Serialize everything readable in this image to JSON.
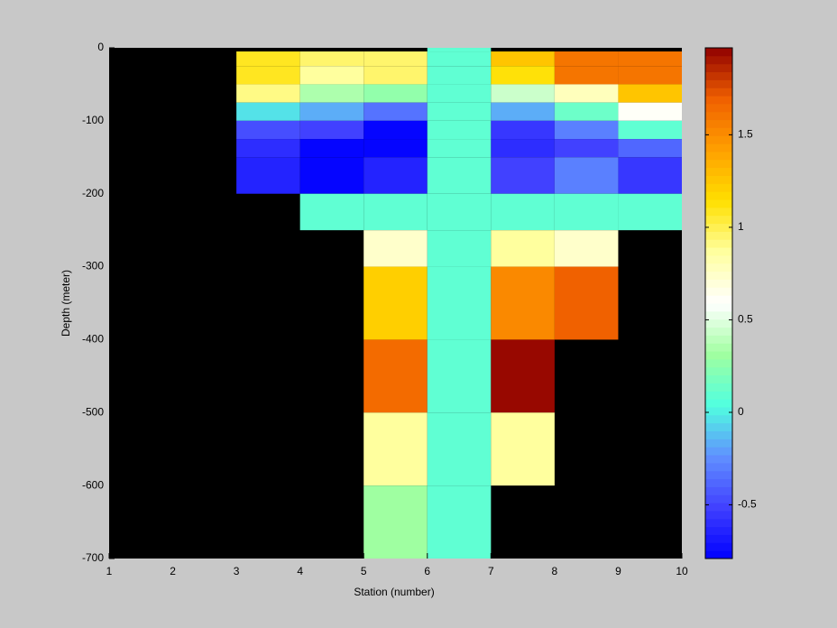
{
  "chart_data": {
    "type": "heatmap",
    "xlabel": "Station (number)",
    "ylabel": "Depth (meter)",
    "x_edges": [
      3,
      4,
      5,
      6,
      7,
      8,
      9,
      10
    ],
    "y_edges": [
      0,
      -5,
      -25,
      -50,
      -75,
      -100,
      -125,
      -150,
      -200,
      -250,
      -300,
      -400,
      -500,
      -600,
      -700
    ],
    "values": [
      [
        null,
        null,
        null,
        0.1,
        null,
        null,
        null
      ],
      [
        1.1,
        0.95,
        0.95,
        0.1,
        1.25,
        1.6,
        1.6
      ],
      [
        1.1,
        0.85,
        0.95,
        0.1,
        1.15,
        1.6,
        1.6
      ],
      [
        0.9,
        0.35,
        0.25,
        0.1,
        0.45,
        0.8,
        1.25
      ],
      [
        -0.05,
        -0.15,
        -0.35,
        0.1,
        -0.15,
        0.15,
        0.6
      ],
      [
        -0.45,
        -0.5,
        -0.75,
        0.1,
        -0.55,
        -0.3,
        0.1
      ],
      [
        -0.6,
        -0.79,
        -0.75,
        0.1,
        -0.6,
        -0.5,
        -0.4
      ],
      [
        -0.65,
        -0.79,
        -0.65,
        0.1,
        -0.5,
        -0.3,
        -0.55
      ],
      [
        null,
        0.1,
        0.1,
        0.1,
        0.1,
        0.1,
        0.1
      ],
      [
        null,
        null,
        0.75,
        0.1,
        0.85,
        0.75,
        null
      ],
      [
        null,
        null,
        1.2,
        0.1,
        1.5,
        1.7,
        null
      ],
      [
        null,
        null,
        1.65,
        0.1,
        1.97,
        null,
        null
      ],
      [
        null,
        null,
        0.85,
        0.1,
        0.85,
        null,
        null
      ],
      [
        null,
        null,
        0.3,
        0.1,
        null,
        null,
        null
      ]
    ],
    "xlim": [
      1,
      10
    ],
    "ylim": [
      -700,
      0
    ],
    "xticks": [
      1,
      2,
      3,
      4,
      5,
      6,
      7,
      8,
      9,
      10
    ],
    "yticks": [
      0,
      -100,
      -200,
      -300,
      -400,
      -500,
      -600,
      -700
    ],
    "clim": [
      -0.79,
      1.97
    ],
    "cticks": [
      -0.5,
      0,
      0.5,
      1,
      1.5
    ],
    "colormap": [
      "#0000ff",
      "#4040ff",
      "#6090ff",
      "#50ffe0",
      "#a0ffa0",
      "#ffffff",
      "#ffffa0",
      "#ffe000",
      "#ffa000",
      "#f06000",
      "#900000"
    ],
    "background": "#000000"
  }
}
